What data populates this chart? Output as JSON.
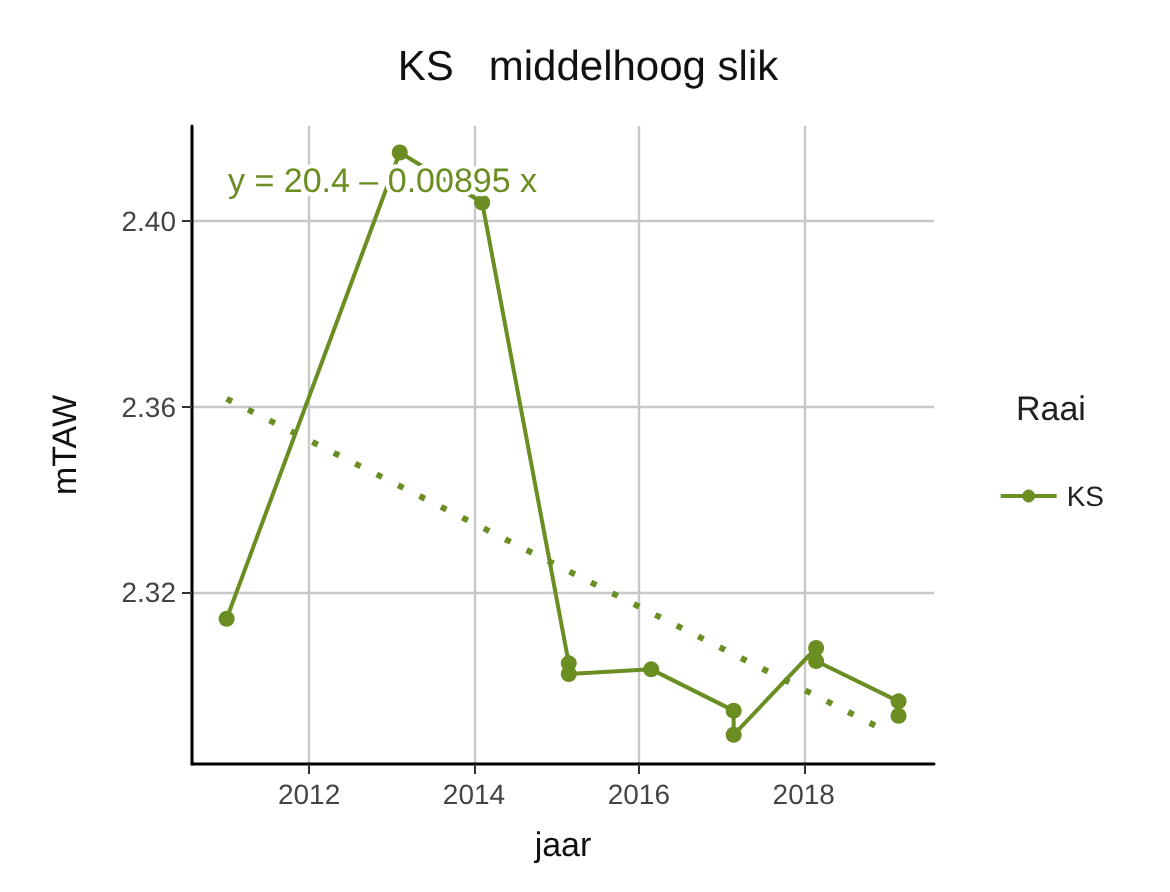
{
  "chart_data": {
    "type": "line",
    "title": "KS   middelhoog slik",
    "xlabel": "jaar",
    "ylabel": "mTAW",
    "legend_title": "Raai",
    "legend": "right",
    "grid": true,
    "marker": "circle",
    "xlim": [
      2010.58,
      2019.58
    ],
    "xticks": [
      2012,
      2014,
      2016,
      2018
    ],
    "ylim": [
      2.283,
      2.4205
    ],
    "yticks": [
      2.32,
      2.36,
      {
        "value": 2.4,
        "label": "2.40"
      }
    ],
    "annotations": [
      "y = 20.4 – 0.00895 x"
    ],
    "series": [
      {
        "name": "KS",
        "color": "#6b8e23",
        "x": [
          2011.0,
          2013.1,
          2014.1,
          2015.15,
          2015.15,
          2016.15,
          2017.15,
          2017.15,
          2018.15,
          2018.15,
          2019.15,
          2019.15
        ],
        "values": [
          2.3143,
          2.4148,
          2.404,
          2.3047,
          2.3024,
          2.3034,
          2.2945,
          2.2893,
          2.308,
          2.3052,
          2.2965,
          2.2934
        ],
        "line_style": "solid"
      },
      {
        "type": "line",
        "color": "#6b8e23",
        "x": [
          2011.0,
          2018.92
        ],
        "values": [
          2.3617,
          2.2908
        ],
        "line_style": "dotted",
        "marker": "none"
      }
    ]
  }
}
